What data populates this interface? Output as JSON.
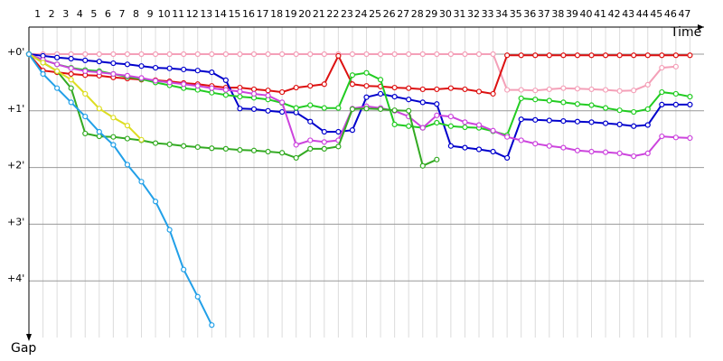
{
  "chart_data": {
    "type": "line",
    "x_label": "Time",
    "y_label": "Gap",
    "x": [
      0,
      1,
      2,
      3,
      4,
      5,
      6,
      7,
      8,
      9,
      10,
      11,
      12,
      13,
      14,
      15,
      16,
      17,
      18,
      19,
      20,
      21,
      22,
      23,
      24,
      25,
      26,
      27,
      28,
      29,
      30,
      31,
      32,
      33,
      34,
      35,
      36,
      37,
      38,
      39,
      40,
      41,
      42,
      43,
      44,
      45,
      46,
      47
    ],
    "xlim": [
      0,
      48
    ],
    "xticks": [
      1,
      2,
      3,
      4,
      5,
      6,
      7,
      8,
      9,
      10,
      11,
      12,
      13,
      14,
      15,
      16,
      17,
      18,
      19,
      20,
      21,
      22,
      23,
      24,
      25,
      26,
      27,
      28,
      29,
      30,
      31,
      32,
      33,
      34,
      35,
      36,
      37,
      38,
      39,
      40,
      41,
      42,
      43,
      44,
      45,
      46,
      47
    ],
    "ylim": [
      -0.5,
      5.0
    ],
    "yticks": [
      {
        "value": 0,
        "label": "+0'"
      },
      {
        "value": 1,
        "label": "+1'"
      },
      {
        "value": 2,
        "label": "+2'"
      },
      {
        "value": 3,
        "label": "+3'"
      },
      {
        "value": 4,
        "label": "+4'"
      }
    ],
    "y_reversed": true,
    "grid": true,
    "series": [
      {
        "color": "#f4a0b8",
        "values": [
          0,
          0,
          0,
          0,
          0,
          0,
          0,
          0,
          0,
          0,
          0,
          0,
          0,
          0,
          0,
          0,
          0,
          0,
          0,
          0,
          0,
          0,
          0,
          0,
          0,
          0,
          0,
          0,
          0,
          0,
          0,
          0,
          0,
          0,
          0.63,
          0.63,
          0.64,
          0.62,
          0.6,
          0.61,
          0.62,
          0.63,
          0.65,
          0.64,
          0.54,
          0.24,
          0.22,
          null
        ]
      },
      {
        "color": "#dd1111",
        "values": [
          0,
          0.29,
          0.32,
          0.35,
          0.37,
          0.38,
          0.41,
          0.43,
          0.45,
          0.46,
          0.48,
          0.51,
          0.53,
          0.56,
          0.59,
          0.59,
          0.62,
          0.64,
          0.67,
          0.59,
          0.56,
          0.53,
          0.03,
          0.53,
          0.56,
          0.57,
          0.59,
          0.6,
          0.62,
          0.62,
          0.6,
          0.62,
          0.66,
          0.7,
          0.02,
          0.02,
          0.02,
          0.02,
          0.02,
          0.02,
          0.02,
          0.02,
          0.02,
          0.02,
          0.02,
          0.02,
          0.02,
          0.02
        ]
      },
      {
        "color": "#0000cc",
        "values": [
          0,
          0.03,
          0.06,
          0.08,
          0.11,
          0.13,
          0.16,
          0.18,
          0.21,
          0.24,
          0.25,
          0.27,
          0.29,
          0.32,
          0.46,
          0.96,
          0.97,
          1.0,
          1.02,
          1.03,
          1.19,
          1.37,
          1.37,
          1.34,
          0.76,
          0.7,
          0.75,
          0.8,
          0.85,
          0.88,
          1.62,
          1.65,
          1.68,
          1.72,
          1.83,
          1.15,
          1.16,
          1.17,
          1.18,
          1.19,
          1.2,
          1.22,
          1.24,
          1.27,
          1.25,
          0.89,
          0.89,
          0.89
        ]
      },
      {
        "color": "#22cc22",
        "values": [
          0,
          0.1,
          0.18,
          0.24,
          0.28,
          0.3,
          0.35,
          0.4,
          0.44,
          0.5,
          0.55,
          0.6,
          0.63,
          0.68,
          0.72,
          0.75,
          0.77,
          0.8,
          0.86,
          0.95,
          0.9,
          0.95,
          0.95,
          0.37,
          0.33,
          0.45,
          1.24,
          1.27,
          1.3,
          1.21,
          1.27,
          1.29,
          1.3,
          1.36,
          1.43,
          0.78,
          0.8,
          0.82,
          0.85,
          0.88,
          0.9,
          0.95,
          0.99,
          1.02,
          0.97,
          0.67,
          0.7,
          0.75
        ]
      },
      {
        "color": "#cc44dd",
        "values": [
          0,
          0.1,
          0.18,
          0.25,
          0.3,
          0.32,
          0.35,
          0.38,
          0.42,
          0.47,
          0.5,
          0.53,
          0.56,
          0.6,
          0.63,
          0.66,
          0.7,
          0.73,
          0.85,
          1.6,
          1.52,
          1.55,
          1.52,
          0.96,
          0.92,
          0.95,
          1.0,
          1.1,
          1.3,
          1.08,
          1.1,
          1.2,
          1.25,
          1.35,
          1.46,
          1.52,
          1.58,
          1.62,
          1.65,
          1.7,
          1.72,
          1.73,
          1.75,
          1.8,
          1.75,
          1.45,
          1.47,
          1.48
        ]
      },
      {
        "color": "#33aa22",
        "values": [
          0,
          0.15,
          0.3,
          0.6,
          1.4,
          1.45,
          1.46,
          1.49,
          1.52,
          1.57,
          1.59,
          1.62,
          1.64,
          1.66,
          1.67,
          1.69,
          1.7,
          1.72,
          1.74,
          1.83,
          1.67,
          1.67,
          1.63,
          0.97,
          0.96,
          0.97,
          0.99,
          1.0,
          1.97,
          1.86,
          null,
          null,
          null,
          null,
          null,
          null,
          null,
          null,
          null,
          null,
          null,
          null,
          null,
          null,
          null,
          null,
          null,
          null
        ]
      },
      {
        "color": "#dddd22",
        "values": [
          0,
          0.15,
          0.3,
          0.45,
          0.7,
          0.96,
          1.12,
          1.26,
          1.51,
          null,
          null,
          null,
          null,
          null,
          null,
          null,
          null,
          null,
          null,
          null,
          null,
          null,
          null,
          null,
          null,
          null,
          null,
          null,
          null,
          null,
          null,
          null,
          null,
          null,
          null,
          null,
          null,
          null,
          null,
          null,
          null,
          null,
          null,
          null,
          null,
          null,
          null,
          null
        ]
      },
      {
        "color": "#22a0e8",
        "values": [
          0,
          0.35,
          0.6,
          0.85,
          1.1,
          1.37,
          1.6,
          1.95,
          2.25,
          2.6,
          3.1,
          3.8,
          4.28,
          4.78,
          null,
          null,
          null,
          null,
          null,
          null,
          null,
          null,
          null,
          null,
          null,
          null,
          null,
          null,
          null,
          null,
          null,
          null,
          null,
          null,
          null,
          null,
          null,
          null,
          null,
          null,
          null,
          null,
          null,
          null,
          null,
          null,
          null,
          null
        ]
      }
    ]
  }
}
